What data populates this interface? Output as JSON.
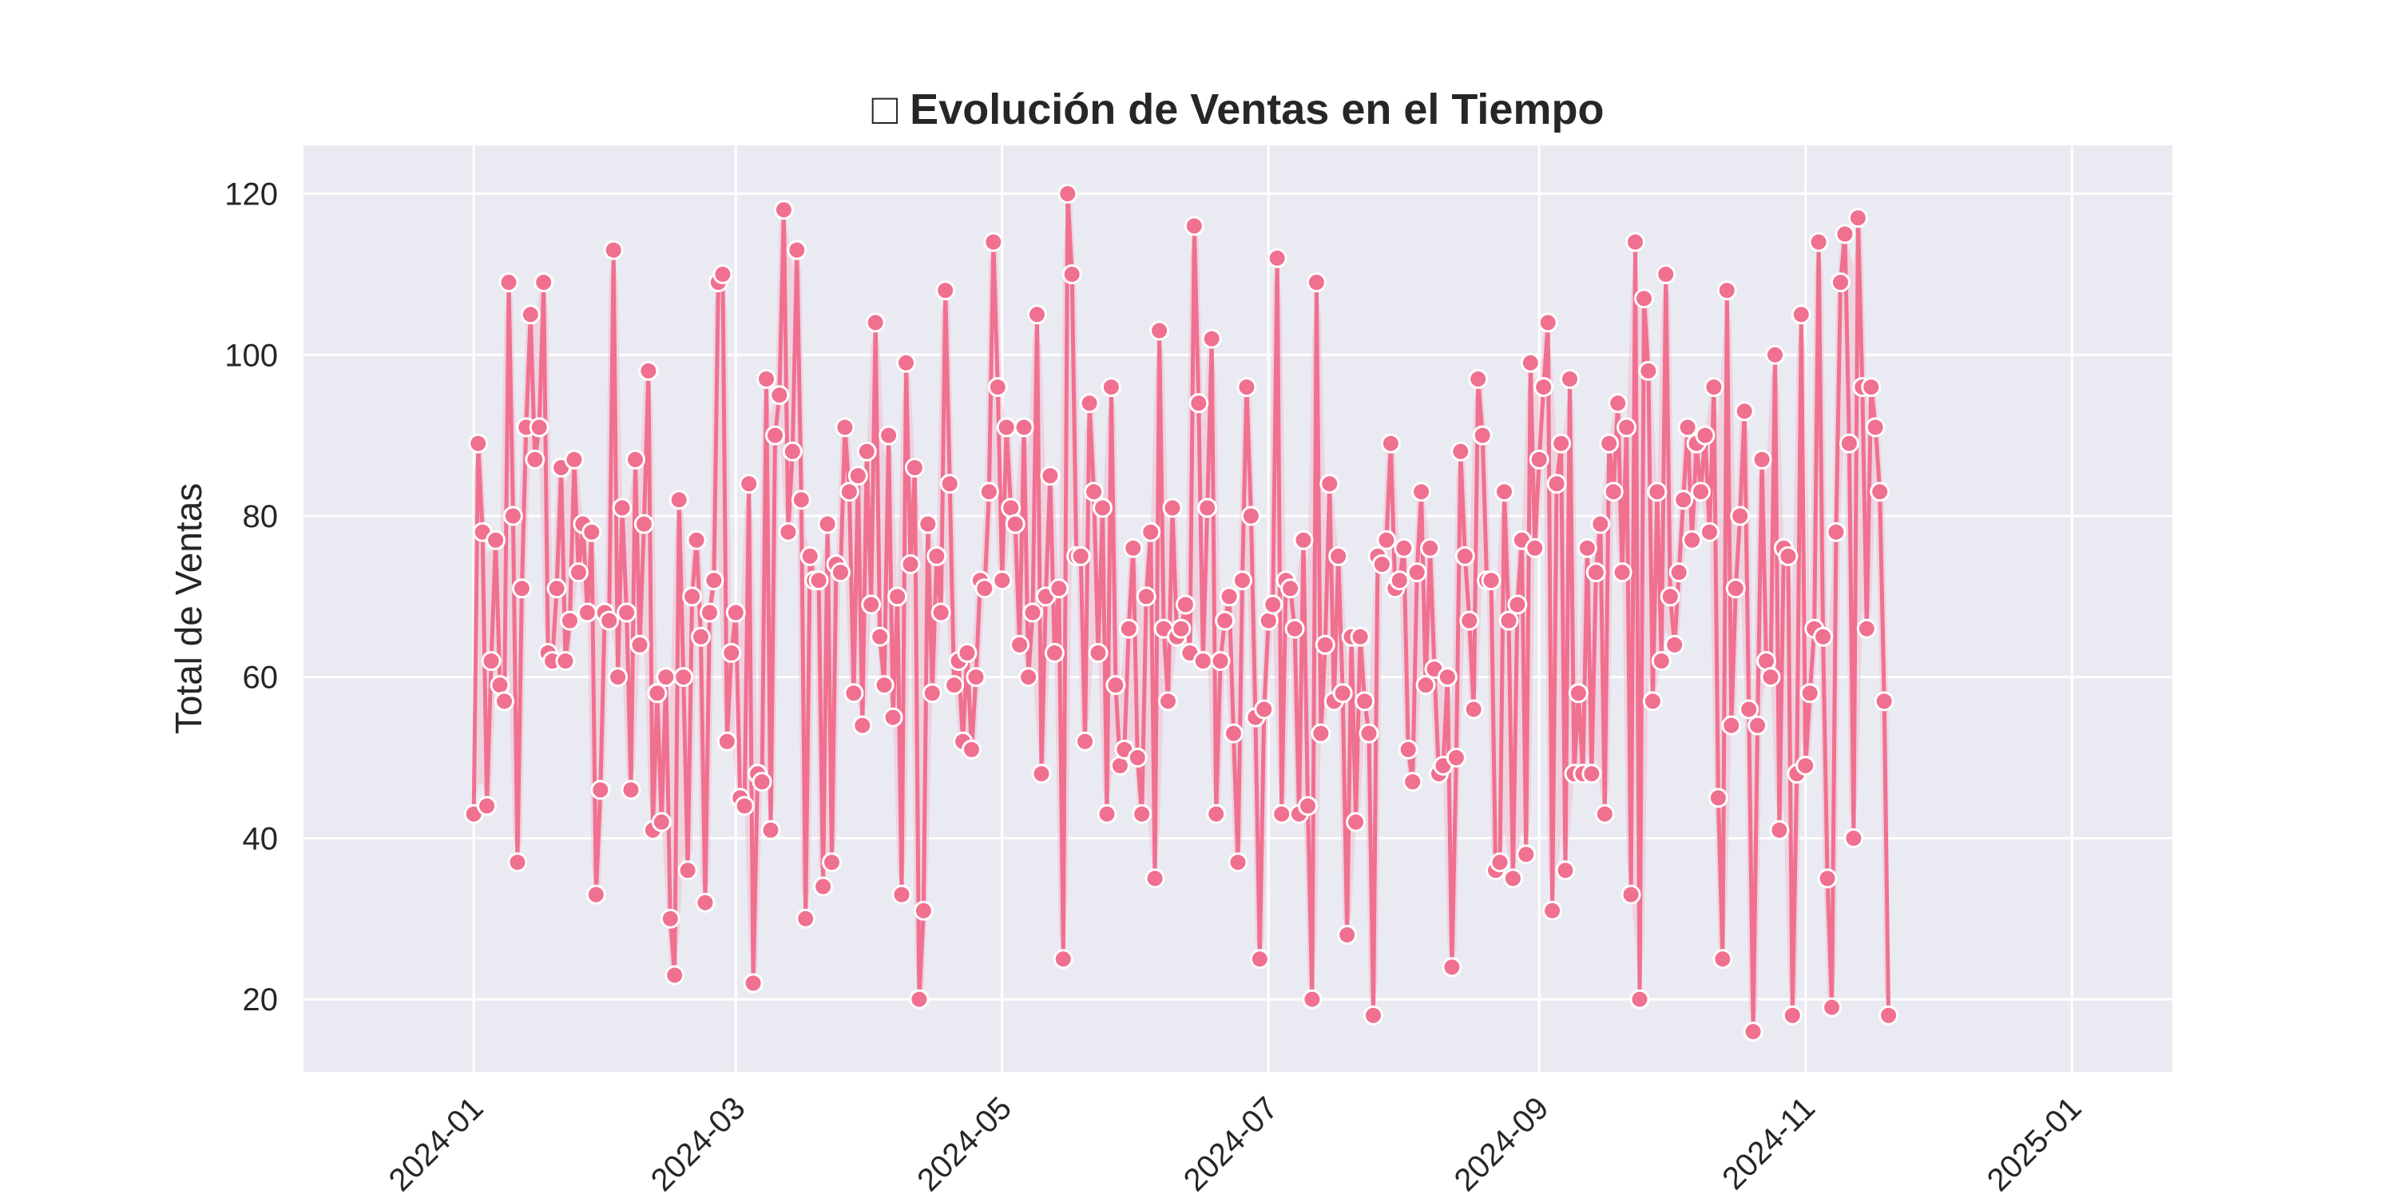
{
  "chart_data": {
    "type": "line",
    "title": "□ Evolución de Ventas en el Tiempo",
    "xlabel": "",
    "ylabel": "Total de Ventas",
    "x_start": "2024-01-01",
    "x_end": "2024-12-31",
    "xlim": [
      "2023-11-23",
      "2025-01-24"
    ],
    "ylim": [
      11,
      126
    ],
    "x_ticks": [
      "2024-01",
      "2024-03",
      "2024-05",
      "2024-07",
      "2024-09",
      "2024-11",
      "2025-01"
    ],
    "y_ticks": [
      20,
      40,
      60,
      80,
      100,
      120
    ],
    "grid": true,
    "legend": "none",
    "colors": {
      "line": "#f07090",
      "band": "#f5b6c8",
      "background": "#eaeaf2",
      "grid": "#ffffff",
      "text": "#262626"
    },
    "series": [
      {
        "values": [
          43,
          89,
          78,
          44,
          62,
          77,
          59,
          57,
          109,
          80,
          37,
          71,
          91,
          105,
          87,
          91,
          109,
          63,
          62,
          71,
          86,
          62,
          67,
          87,
          73,
          79,
          68,
          78,
          33,
          46,
          68,
          67,
          113,
          60,
          81,
          68,
          46,
          87,
          64,
          79,
          98,
          41,
          58,
          42,
          60,
          30,
          23,
          82,
          60,
          36,
          70,
          77,
          65,
          32,
          68,
          72,
          109,
          110,
          52,
          63,
          68,
          45,
          44,
          84,
          22,
          48,
          47,
          97,
          41,
          90,
          95,
          118,
          78,
          88,
          113,
          82,
          30,
          75,
          72,
          72,
          34,
          79,
          37,
          74,
          73,
          91,
          83,
          58,
          85,
          54,
          88,
          69,
          104,
          65,
          59,
          90,
          55,
          70,
          33,
          99,
          74,
          86,
          20,
          31,
          79,
          58,
          75,
          68,
          108,
          84,
          59,
          62,
          52,
          63,
          51,
          60,
          72,
          71,
          83,
          114,
          96,
          72,
          91,
          81,
          79,
          64,
          91,
          60,
          68,
          105,
          48,
          70,
          85,
          63,
          71,
          25,
          120,
          110,
          75,
          75,
          52,
          94,
          83,
          63,
          81,
          43,
          96,
          59,
          49,
          51,
          66,
          76,
          50,
          43,
          70,
          78,
          35,
          103,
          66,
          57,
          81,
          65,
          66,
          69,
          63,
          116,
          94,
          62,
          81,
          102,
          43,
          62,
          67,
          70,
          53,
          37,
          72,
          96,
          80,
          55,
          25,
          56,
          67,
          69,
          112,
          43,
          72,
          71,
          66,
          43,
          77,
          44,
          20,
          109,
          53,
          64,
          84,
          57,
          75,
          58,
          28,
          65,
          42,
          65,
          57,
          53,
          18,
          75,
          74,
          77,
          89,
          71,
          72,
          76,
          51,
          47,
          73,
          83,
          59,
          76,
          61,
          48,
          49,
          60,
          24,
          50,
          88,
          75,
          67,
          56,
          97,
          90,
          72,
          72,
          36,
          37,
          83,
          67,
          35,
          69,
          77,
          38,
          99,
          76,
          87,
          96,
          104,
          31,
          84,
          89,
          36,
          97,
          48,
          58,
          48,
          76,
          48,
          73,
          79,
          43,
          89,
          83,
          94,
          73,
          91,
          33,
          114,
          20,
          107,
          98,
          57,
          83,
          62,
          110,
          70,
          64,
          73,
          82,
          91,
          77,
          89,
          83,
          90,
          78,
          96,
          45,
          25,
          108,
          54,
          71,
          80,
          93,
          56,
          16,
          54,
          87,
          62,
          60,
          100,
          41,
          76,
          75,
          18,
          48,
          105,
          49,
          58,
          66,
          114,
          65,
          35,
          19,
          78,
          109,
          115,
          89,
          40,
          117,
          96,
          66,
          96,
          91,
          83,
          57,
          18
        ]
      }
    ]
  }
}
